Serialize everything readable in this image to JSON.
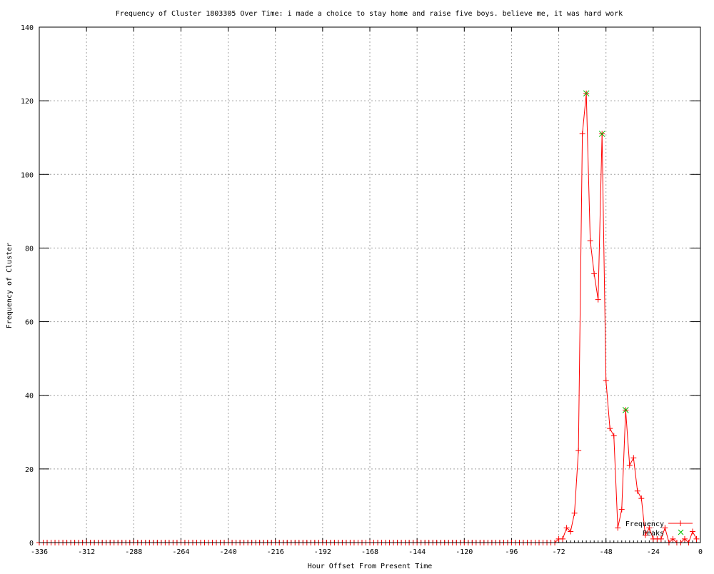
{
  "chart_data": {
    "type": "line",
    "title": "Frequency of Cluster 1803305 Over Time: i made a choice to stay home and raise five boys. believe me, it was hard work",
    "xlabel": "Hour Offset From Present Time",
    "ylabel": "Frequency of Cluster",
    "xlim": [
      -336,
      0
    ],
    "ylim": [
      0,
      140
    ],
    "xticks": [
      -336,
      -312,
      -288,
      -264,
      -240,
      -216,
      -192,
      -168,
      -144,
      -120,
      -96,
      -72,
      -48,
      -24,
      0
    ],
    "yticks": [
      0,
      20,
      40,
      60,
      80,
      100,
      120,
      140
    ],
    "grid": true,
    "legend_position": "bottom-right",
    "series": [
      {
        "name": "Frequency",
        "color": "#ff0000",
        "marker": "plus",
        "zero_from": -336,
        "zero_to": -74,
        "step": 2,
        "points": [
          [
            -72,
            1
          ],
          [
            -70,
            1
          ],
          [
            -68,
            4
          ],
          [
            -66,
            3
          ],
          [
            -64,
            8
          ],
          [
            -62,
            25
          ],
          [
            -60,
            111
          ],
          [
            -58,
            122
          ],
          [
            -56,
            82
          ],
          [
            -54,
            73
          ],
          [
            -52,
            66
          ],
          [
            -50,
            111
          ],
          [
            -48,
            44
          ],
          [
            -46,
            31
          ],
          [
            -44,
            29
          ],
          [
            -42,
            4
          ],
          [
            -40,
            9
          ],
          [
            -38,
            36
          ],
          [
            -36,
            21
          ],
          [
            -34,
            23
          ],
          [
            -32,
            14
          ],
          [
            -30,
            12
          ],
          [
            -28,
            2
          ],
          [
            -26,
            4
          ],
          [
            -24,
            1
          ],
          [
            -22,
            1
          ],
          [
            -20,
            1
          ],
          [
            -18,
            4
          ],
          [
            -16,
            0
          ],
          [
            -14,
            1
          ],
          [
            -12,
            0
          ],
          [
            -10,
            0
          ],
          [
            -8,
            1
          ],
          [
            -6,
            0
          ],
          [
            -4,
            3
          ],
          [
            -2,
            1
          ]
        ]
      },
      {
        "name": "Peaks",
        "color": "#00c000",
        "marker": "cross",
        "points": [
          [
            -58,
            122
          ],
          [
            -50,
            111
          ],
          [
            -38,
            36
          ]
        ]
      }
    ]
  }
}
